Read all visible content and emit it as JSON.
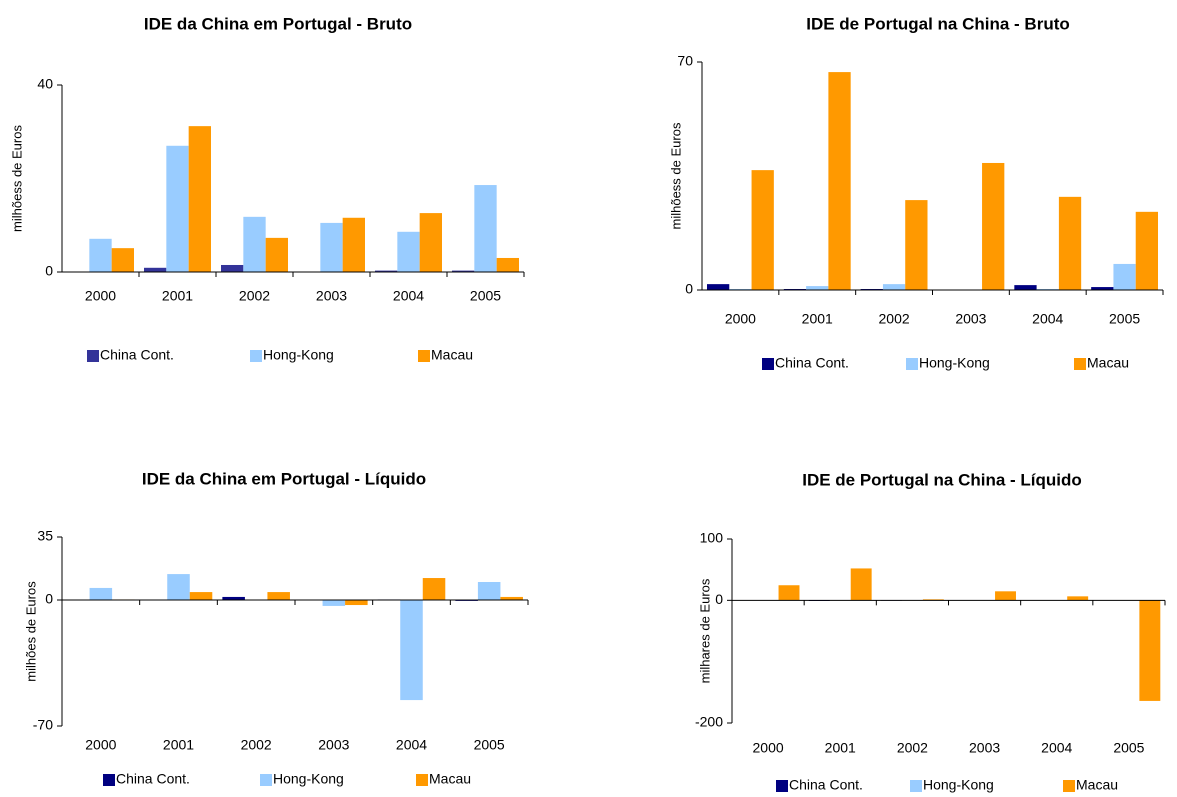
{
  "chart_data": [
    {
      "type": "bar",
      "title": "IDE da China em Portugal - Bruto",
      "y_label": "milhõess de Euros",
      "categories": [
        "2000",
        "2001",
        "2002",
        "2003",
        "2004",
        "2005"
      ],
      "ylim": [
        0,
        40
      ],
      "yticks": [
        0,
        40
      ],
      "series": [
        {
          "name": "China Cont.",
          "color": "#333399",
          "values": [
            0,
            0.9,
            1.5,
            0.1,
            0.3,
            0.3
          ]
        },
        {
          "name": "Hong-Kong",
          "color": "#99ccff",
          "values": [
            7.1,
            27,
            11.8,
            10.5,
            8.6,
            18.6
          ]
        },
        {
          "name": "Macau",
          "color": "#ff9900",
          "values": [
            5.1,
            31.2,
            7.3,
            11.6,
            12.6,
            3.0
          ]
        }
      ]
    },
    {
      "type": "bar",
      "title": "IDE de Portugal na China -  Bruto",
      "y_label": "milhõess de Euros",
      "categories": [
        "2000",
        "2001",
        "2002",
        "2003",
        "2004",
        "2005"
      ],
      "ylim": [
        0,
        70
      ],
      "yticks": [
        0,
        70
      ],
      "series": [
        {
          "name": "China Cont.",
          "color": "#000080",
          "values": [
            1.8,
            0.3,
            0.3,
            0,
            1.5,
            0.9
          ]
        },
        {
          "name": "Hong-Kong",
          "color": "#99ccff",
          "values": [
            0.3,
            1.2,
            1.8,
            0,
            0.3,
            8
          ]
        },
        {
          "name": "Macau",
          "color": "#ff9900",
          "values": [
            36.8,
            66.9,
            27.6,
            39,
            28.6,
            24
          ]
        }
      ]
    },
    {
      "type": "bar",
      "title": "IDE da China em Portugal - Líquido",
      "y_label": "milhões de Euros",
      "categories": [
        "2000",
        "2001",
        "2002",
        "2003",
        "2004",
        "2005"
      ],
      "ylim": [
        -70,
        35
      ],
      "yticks": [
        -70,
        0,
        35
      ],
      "series": [
        {
          "name": "China Cont.",
          "color": "#000080",
          "values": [
            0,
            0.2,
            1.7,
            0,
            0.3,
            -0.5
          ]
        },
        {
          "name": "Hong-Kong",
          "color": "#99ccff",
          "values": [
            6.7,
            14.4,
            0,
            -3.3,
            -55.6,
            10
          ]
        },
        {
          "name": "Macau",
          "color": "#ff9900",
          "values": [
            0.3,
            4.4,
            4.4,
            -2.8,
            12.2,
            1.7
          ]
        }
      ]
    },
    {
      "type": "bar",
      "title": "IDE de Portugal na China - Líquido",
      "y_label": "milhares de Euros",
      "categories": [
        "2000",
        "2001",
        "2002",
        "2003",
        "2004",
        "2005"
      ],
      "ylim": [
        -200,
        100
      ],
      "yticks": [
        -200,
        0,
        100
      ],
      "series": [
        {
          "name": "China Cont.",
          "color": "#000080",
          "values": [
            0.5,
            -1,
            -0.5,
            0,
            0.5,
            0.5
          ]
        },
        {
          "name": "Hong-Kong",
          "color": "#99ccff",
          "values": [
            0,
            0,
            0,
            0,
            0,
            0
          ]
        },
        {
          "name": "Macau",
          "color": "#ff9900",
          "values": [
            24.6,
            52,
            1.6,
            14.7,
            6.5,
            -164
          ]
        }
      ]
    }
  ]
}
